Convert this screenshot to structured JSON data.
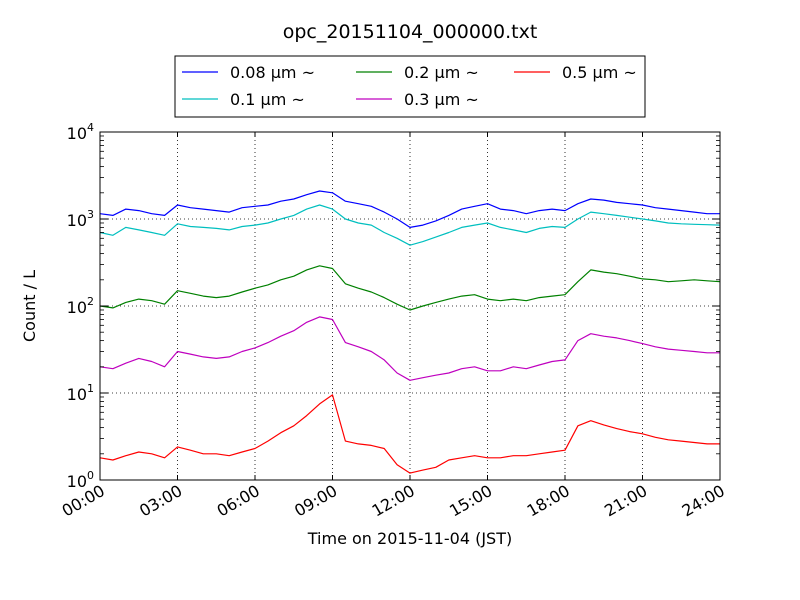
{
  "chart_data": {
    "type": "line",
    "title": "opc_20151104_000000.txt",
    "xlabel": "Time on 2015-11-04 (JST)",
    "ylabel": "Count / L",
    "xlim": [
      0,
      24
    ],
    "ylim": [
      1,
      10000
    ],
    "y_scale": "log",
    "grid": true,
    "legend_position": "top",
    "x_tick_labels": [
      "00:00",
      "03:00",
      "06:00",
      "09:00",
      "12:00",
      "15:00",
      "18:00",
      "21:00",
      "24:00"
    ],
    "y_tick_labels": [
      {
        "base": "10",
        "exp": "0"
      },
      {
        "base": "10",
        "exp": "1"
      },
      {
        "base": "10",
        "exp": "2"
      },
      {
        "base": "10",
        "exp": "3"
      },
      {
        "base": "10",
        "exp": "4"
      }
    ],
    "x": [
      0,
      0.5,
      1,
      1.5,
      2,
      2.5,
      3,
      3.5,
      4,
      4.5,
      5,
      5.5,
      6,
      6.5,
      7,
      7.5,
      8,
      8.5,
      9,
      9.5,
      10,
      10.5,
      11,
      11.5,
      12,
      12.5,
      13,
      13.5,
      14,
      14.5,
      15,
      15.5,
      16,
      16.5,
      17,
      17.5,
      18,
      18.5,
      19,
      19.5,
      20,
      20.5,
      21,
      21.5,
      22,
      22.5,
      23,
      23.5,
      24
    ],
    "series": [
      {
        "name": "0.08 μm ~",
        "color": "#0000ff",
        "values": [
          1150,
          1100,
          1300,
          1250,
          1150,
          1100,
          1450,
          1350,
          1300,
          1250,
          1200,
          1350,
          1400,
          1450,
          1600,
          1700,
          1900,
          2100,
          2000,
          1600,
          1500,
          1400,
          1200,
          1000,
          800,
          850,
          950,
          1100,
          1300,
          1400,
          1500,
          1300,
          1250,
          1150,
          1250,
          1300,
          1250,
          1500,
          1700,
          1650,
          1550,
          1500,
          1450,
          1350,
          1300,
          1250,
          1200,
          1150,
          1150
        ]
      },
      {
        "name": "0.1 μm ~",
        "color": "#00bfbf",
        "values": [
          700,
          650,
          800,
          750,
          700,
          650,
          880,
          820,
          800,
          780,
          750,
          820,
          850,
          900,
          1000,
          1100,
          1300,
          1450,
          1300,
          1000,
          900,
          850,
          700,
          600,
          500,
          550,
          620,
          700,
          800,
          850,
          900,
          800,
          750,
          700,
          780,
          820,
          800,
          1000,
          1200,
          1150,
          1100,
          1050,
          1000,
          950,
          900,
          880,
          870,
          860,
          850
        ]
      },
      {
        "name": "0.2 μm ~",
        "color": "#008000",
        "values": [
          100,
          95,
          110,
          120,
          115,
          105,
          150,
          140,
          130,
          125,
          130,
          145,
          160,
          175,
          200,
          220,
          260,
          290,
          270,
          180,
          160,
          145,
          125,
          105,
          90,
          100,
          110,
          120,
          130,
          135,
          120,
          115,
          120,
          115,
          125,
          130,
          135,
          190,
          260,
          245,
          235,
          220,
          205,
          200,
          190,
          195,
          200,
          195,
          190
        ]
      },
      {
        "name": "0.3 μm ~",
        "color": "#bf00bf",
        "values": [
          20,
          19,
          22,
          25,
          23,
          20,
          30,
          28,
          26,
          25,
          26,
          30,
          33,
          38,
          45,
          52,
          65,
          75,
          70,
          38,
          34,
          30,
          24,
          17,
          14,
          15,
          16,
          17,
          19,
          20,
          18,
          18,
          20,
          19,
          21,
          23,
          24,
          40,
          48,
          45,
          43,
          40,
          37,
          34,
          32,
          31,
          30,
          29,
          29
        ]
      },
      {
        "name": "0.5 μm ~",
        "color": "#ff0000",
        "values": [
          1.8,
          1.7,
          1.9,
          2.1,
          2.0,
          1.8,
          2.4,
          2.2,
          2.0,
          2.0,
          1.9,
          2.1,
          2.3,
          2.8,
          3.5,
          4.2,
          5.5,
          7.5,
          9.5,
          2.8,
          2.6,
          2.5,
          2.3,
          1.5,
          1.2,
          1.3,
          1.4,
          1.7,
          1.8,
          1.9,
          1.8,
          1.8,
          1.9,
          1.9,
          2.0,
          2.1,
          2.2,
          4.2,
          4.8,
          4.3,
          3.9,
          3.6,
          3.4,
          3.1,
          2.9,
          2.8,
          2.7,
          2.6,
          2.6
        ]
      }
    ]
  }
}
